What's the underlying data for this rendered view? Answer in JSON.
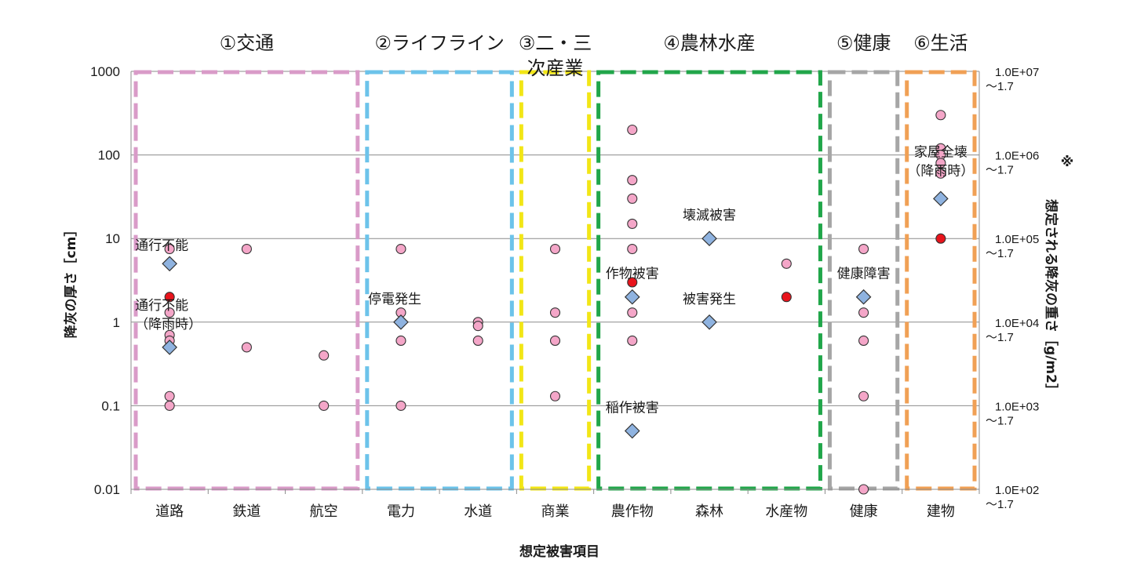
{
  "chart_data": {
    "type": "scatter",
    "xlabel": "想定被害項目",
    "ylabel": "降灰の厚さ［cm］",
    "y2label": "想定される降灰の重さ［g/m2］",
    "y2_mark": "※",
    "yscale": "log",
    "ylim": [
      0.01,
      1000
    ],
    "yticks": [
      "0.01",
      "0.1",
      "1",
      "10",
      "100",
      "1000"
    ],
    "y2ticks": [
      {
        "main": "1.0E+02",
        "sub": "～1.7"
      },
      {
        "main": "1.0E+03",
        "sub": "～1.7"
      },
      {
        "main": "1.0E+04",
        "sub": "～1.7"
      },
      {
        "main": "1.0E+05",
        "sub": "～1.7"
      },
      {
        "main": "1.0E+06",
        "sub": "～1.7"
      },
      {
        "main": "1.0E+07",
        "sub": "～1.7"
      }
    ],
    "grid": "horizontal",
    "categories": [
      "道路",
      "鉄道",
      "航空",
      "電力",
      "水道",
      "商業",
      "農作物",
      "森林",
      "水産物",
      "健康",
      "建物"
    ],
    "groups": [
      {
        "label": "①交通",
        "from": 0,
        "to": 2,
        "color": "#d99bc8"
      },
      {
        "label": "②ライフライン",
        "from": 3,
        "to": 4,
        "color": "#6cc3ea"
      },
      {
        "label": "③二・三次産業",
        "label_lines": [
          "③二・三",
          "次産業"
        ],
        "from": 5,
        "to": 5,
        "color": "#f2e616"
      },
      {
        "label": "④農林水産",
        "from": 6,
        "to": 8,
        "color": "#21a64a"
      },
      {
        "label": "⑤健康",
        "from": 9,
        "to": 9,
        "color": "#a6a6a6"
      },
      {
        "label": "⑥生活",
        "from": 10,
        "to": 10,
        "color": "#f0a055"
      }
    ],
    "series": [
      {
        "marker": "circle",
        "color": "#f4a6c8",
        "points": [
          {
            "x": "道路",
            "y": 7.5
          },
          {
            "x": "道路",
            "y": 1.3
          },
          {
            "x": "道路",
            "y": 0.7
          },
          {
            "x": "道路",
            "y": 0.6
          },
          {
            "x": "道路",
            "y": 0.13
          },
          {
            "x": "道路",
            "y": 0.1
          },
          {
            "x": "鉄道",
            "y": 7.5
          },
          {
            "x": "鉄道",
            "y": 0.5
          },
          {
            "x": "航空",
            "y": 0.4
          },
          {
            "x": "航空",
            "y": 0.1
          },
          {
            "x": "電力",
            "y": 7.5
          },
          {
            "x": "電力",
            "y": 1.3
          },
          {
            "x": "電力",
            "y": 0.6
          },
          {
            "x": "電力",
            "y": 0.1
          },
          {
            "x": "水道",
            "y": 1.0
          },
          {
            "x": "水道",
            "y": 0.9
          },
          {
            "x": "水道",
            "y": 0.6
          },
          {
            "x": "商業",
            "y": 7.5
          },
          {
            "x": "商業",
            "y": 1.3
          },
          {
            "x": "商業",
            "y": 0.6
          },
          {
            "x": "商業",
            "y": 0.13
          },
          {
            "x": "農作物",
            "y": 200
          },
          {
            "x": "農作物",
            "y": 50
          },
          {
            "x": "農作物",
            "y": 30
          },
          {
            "x": "農作物",
            "y": 15
          },
          {
            "x": "農作物",
            "y": 7.5
          },
          {
            "x": "農作物",
            "y": 1.3
          },
          {
            "x": "農作物",
            "y": 0.6
          },
          {
            "x": "水産物",
            "y": 5
          },
          {
            "x": "健康",
            "y": 7.5
          },
          {
            "x": "健康",
            "y": 1.3
          },
          {
            "x": "健康",
            "y": 0.6
          },
          {
            "x": "健康",
            "y": 0.13
          },
          {
            "x": "健康",
            "y": 0.01
          },
          {
            "x": "建物",
            "y": 300
          },
          {
            "x": "建物",
            "y": 120
          },
          {
            "x": "建物",
            "y": 100
          },
          {
            "x": "建物",
            "y": 80
          },
          {
            "x": "建物",
            "y": 60
          }
        ]
      },
      {
        "marker": "circle",
        "color": "#e8141c",
        "points": [
          {
            "x": "道路",
            "y": 2
          },
          {
            "x": "農作物",
            "y": 3
          },
          {
            "x": "水産物",
            "y": 2
          },
          {
            "x": "建物",
            "y": 10
          }
        ]
      },
      {
        "marker": "diamond",
        "color": "#8fb3e0",
        "points": [
          {
            "x": "道路",
            "y": 5,
            "label": "通行不能"
          },
          {
            "x": "道路",
            "y": 0.5,
            "label": "通行不能",
            "label2": "（降雨時）"
          },
          {
            "x": "電力",
            "y": 1,
            "label": "停電発生"
          },
          {
            "x": "農作物",
            "y": 2,
            "label": "作物被害"
          },
          {
            "x": "農作物",
            "y": 0.05,
            "label": "稲作被害"
          },
          {
            "x": "森林",
            "y": 10,
            "label": "壊滅被害"
          },
          {
            "x": "森林",
            "y": 1,
            "label": "被害発生"
          },
          {
            "x": "健康",
            "y": 2,
            "label": "健康障害"
          },
          {
            "x": "建物",
            "y": 30,
            "label": "家屋全壊",
            "label2": "（降雨時）"
          }
        ]
      }
    ]
  }
}
